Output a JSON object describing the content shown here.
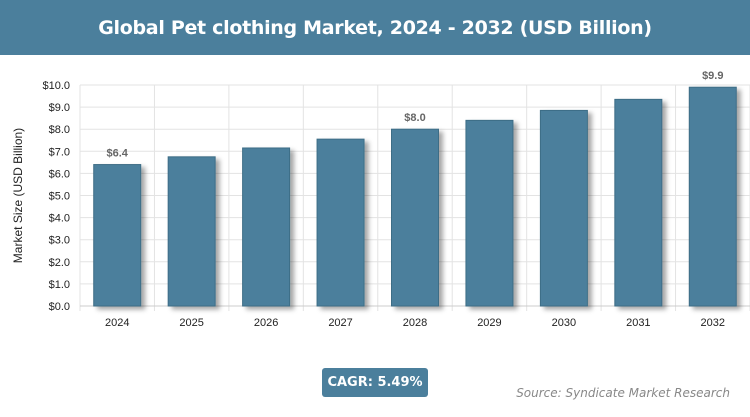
{
  "title": "Global Pet clothing Market, 2024 - 2032 (USD Billion)",
  "cagr": "CAGR: 5.49%",
  "source": "Source: Syndicate Market Research",
  "chart_data": {
    "type": "bar",
    "title": "Global Pet clothing Market, 2024 - 2032 (USD Billion)",
    "xlabel": "",
    "ylabel": "Market Size (USD Billion)",
    "ylim": [
      0,
      10
    ],
    "yticks": [
      "$0.0",
      "$1.0",
      "$2.0",
      "$3.0",
      "$4.0",
      "$5.0",
      "$6.0",
      "$7.0",
      "$8.0",
      "$9.0",
      "$10.0"
    ],
    "categories": [
      "2024",
      "2025",
      "2026",
      "2027",
      "2028",
      "2029",
      "2030",
      "2031",
      "2032"
    ],
    "values": [
      6.4,
      6.75,
      7.15,
      7.55,
      8.0,
      8.4,
      8.85,
      9.35,
      9.9
    ],
    "data_labels": {
      "2024": "$6.4",
      "2028": "$8.0",
      "2032": "$9.9"
    },
    "grid": true,
    "bar_color": "#4b7f9c"
  }
}
